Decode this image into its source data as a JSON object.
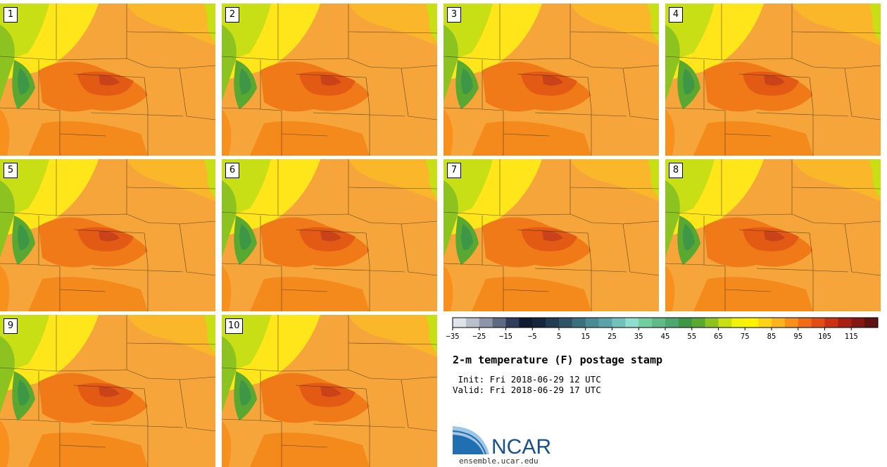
{
  "title": "2-m temperature (F) postage stamp",
  "init_label": " Init: Fri 2018-06-29 12 UTC",
  "valid_label": "Valid: Fri 2018-06-29 17 UTC",
  "site": "ensemble.ucar.edu",
  "logo_text": "NCAR",
  "members": [
    "1",
    "2",
    "3",
    "4",
    "5",
    "6",
    "7",
    "8",
    "9",
    "10"
  ],
  "colorbar": {
    "min": -35,
    "max": 125,
    "step": 5,
    "tick_labels": [
      "−35",
      "−25",
      "−15",
      "−5",
      "5",
      "15",
      "25",
      "35",
      "45",
      "55",
      "65",
      "75",
      "85",
      "95",
      "105",
      "115"
    ],
    "colors": [
      "#dfe3ea",
      "#b9bfcb",
      "#8d95a8",
      "#5d6a83",
      "#2e3d5b",
      "#0f1a33",
      "#13263e",
      "#213b52",
      "#2e5468",
      "#3a6f7f",
      "#4a8a94",
      "#5aa4a9",
      "#72c1bb",
      "#8fddcf",
      "#6fcf9f",
      "#5fba86",
      "#4ea86e",
      "#3e9746",
      "#58a832",
      "#8cc321",
      "#c9df15",
      "#f3f20d",
      "#fff200",
      "#ffd21a",
      "#fdb21f",
      "#f7901d",
      "#ef6d18",
      "#e14d14",
      "#c93314",
      "#a72012",
      "#851713",
      "#5f1210"
    ]
  },
  "legend_unit": "F"
}
